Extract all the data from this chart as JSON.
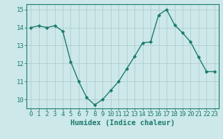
{
  "x": [
    0,
    1,
    2,
    3,
    4,
    5,
    6,
    7,
    8,
    9,
    10,
    11,
    12,
    13,
    14,
    15,
    16,
    17,
    18,
    19,
    20,
    21,
    22,
    23
  ],
  "y": [
    14.0,
    14.1,
    14.0,
    14.1,
    13.8,
    12.1,
    11.0,
    10.1,
    9.7,
    10.0,
    10.5,
    11.0,
    11.7,
    12.4,
    13.15,
    13.2,
    14.7,
    15.0,
    14.15,
    13.7,
    13.2,
    12.35,
    11.55,
    11.55
  ],
  "line_color": "#1a7a6e",
  "marker": "D",
  "marker_size": 2.5,
  "bg_color": "#cce8e8",
  "grid_color": "#b0cccc",
  "xlabel": "Humidex (Indice chaleur)",
  "xlim": [
    -0.5,
    23.5
  ],
  "ylim": [
    9.5,
    15.3
  ],
  "yticks": [
    10,
    11,
    12,
    13,
    14,
    15
  ],
  "xticks": [
    0,
    1,
    2,
    3,
    4,
    5,
    6,
    7,
    8,
    9,
    10,
    11,
    12,
    13,
    14,
    15,
    16,
    17,
    18,
    19,
    20,
    21,
    22,
    23
  ],
  "tick_color": "#1a7a6e",
  "spine_color": "#1a7a6e",
  "font_color": "#1a7a6e",
  "xlabel_fontsize": 7.5,
  "tick_fontsize": 6.5,
  "line_width": 1.0
}
